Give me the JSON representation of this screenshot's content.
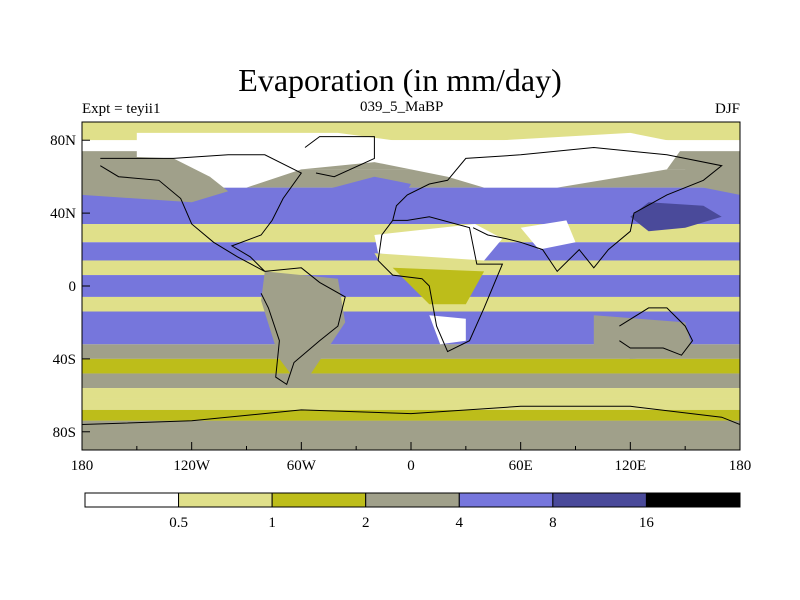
{
  "title": "Evaporation (in mm/day)",
  "left_label": "Expt = teyii1",
  "center_label": "039_5_MaBP",
  "right_label": "DJF",
  "colors": {
    "c0": "#ffffff",
    "c1": "#e0e08a",
    "c2": "#bdbd1a",
    "c3": "#a0a08a",
    "c4": "#7676dc",
    "c5": "#4a4a9a",
    "c6": "#000000",
    "land_line": "#000000"
  },
  "chart_data": {
    "type": "heatmap",
    "title": "Evaporation (in mm/day)",
    "x_ticks": [
      "180",
      "120W",
      "60W",
      "0",
      "60E",
      "120E",
      "180"
    ],
    "y_ticks": [
      "80N",
      "40N",
      "0",
      "40S",
      "80S"
    ],
    "xlim": [
      -180,
      180
    ],
    "ylim": [
      -90,
      90
    ],
    "colorbar": {
      "levels": [
        0.5,
        1,
        2,
        4,
        8,
        16
      ],
      "labels": [
        "0.5",
        "1",
        "2",
        "4",
        "8",
        "16"
      ],
      "colors": [
        "#ffffff",
        "#e0e08a",
        "#bdbd1a",
        "#a0a08a",
        "#7676dc",
        "#4a4a9a",
        "#000000"
      ]
    },
    "regions": [
      {
        "name": "north-polar-white",
        "class": 0
      },
      {
        "name": "north-midlat-ocean",
        "class": 4
      },
      {
        "name": "tropical-ocean",
        "class": 4
      },
      {
        "name": "south-ocean",
        "class": 4
      },
      {
        "name": "kuroshio-high",
        "class": 5
      },
      {
        "name": "sahara-low",
        "class": 0
      },
      {
        "name": "antarctic-band",
        "class": 3
      }
    ]
  }
}
